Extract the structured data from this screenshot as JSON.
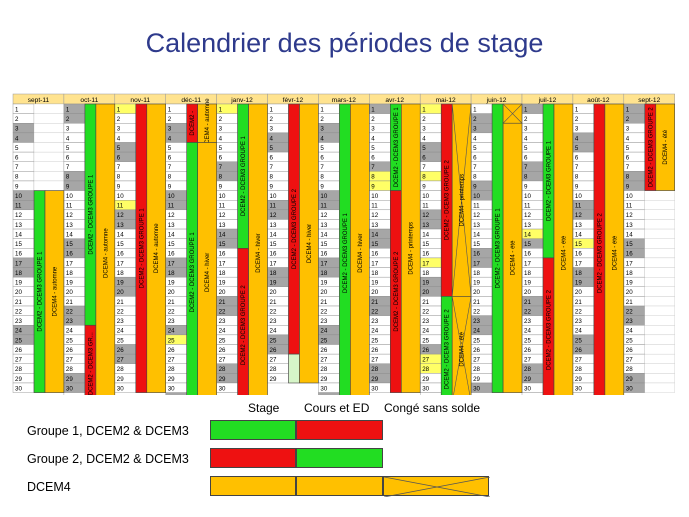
{
  "title": "Calendrier des périodes de stage",
  "colors": {
    "green": "#22dd22",
    "red": "#ee1111",
    "orange": "#ffc000",
    "gray": "#a6a6a6",
    "yellow": "#ffff66",
    "lightgreen": "#d6f5c8"
  },
  "months": [
    {
      "label": "sept-11",
      "days": 30,
      "weekend": [
        3,
        4,
        10,
        11,
        17,
        18,
        24,
        25
      ],
      "yellow": []
    },
    {
      "label": "oct-11",
      "days": 31,
      "weekend": [
        1,
        2,
        8,
        9,
        15,
        16,
        22,
        23,
        29,
        30
      ],
      "yellow": []
    },
    {
      "label": "nov-11",
      "days": 30,
      "weekend": [
        5,
        6,
        11,
        12,
        13,
        19,
        20,
        26,
        27
      ],
      "yellow": [
        1,
        11
      ]
    },
    {
      "label": "déc-11",
      "days": 31,
      "weekend": [
        3,
        4,
        10,
        11,
        17,
        18,
        24,
        25,
        31
      ],
      "yellow": [
        25
      ]
    },
    {
      "label": "janv-12",
      "days": 31,
      "weekend": [
        1,
        7,
        8,
        14,
        15,
        21,
        22,
        28,
        29
      ],
      "yellow": [
        1
      ]
    },
    {
      "label": "févr-12",
      "days": 29,
      "weekend": [
        4,
        5,
        11,
        12,
        18,
        19,
        25,
        26
      ],
      "yellow": []
    },
    {
      "label": "mars-12",
      "days": 31,
      "weekend": [
        3,
        4,
        10,
        11,
        17,
        18,
        24,
        25,
        31
      ],
      "yellow": []
    },
    {
      "label": "avr-12",
      "days": 30,
      "weekend": [
        1,
        7,
        8,
        14,
        15,
        21,
        22,
        28,
        29
      ],
      "yellow": [
        8,
        9
      ]
    },
    {
      "label": "mai-12",
      "days": 31,
      "weekend": [
        5,
        6,
        12,
        13,
        19,
        20,
        26,
        27
      ],
      "yellow": [
        1,
        8,
        17,
        27,
        28
      ]
    },
    {
      "label": "juin-12",
      "days": 30,
      "weekend": [
        2,
        3,
        9,
        10,
        16,
        17,
        23,
        24,
        30
      ],
      "yellow": []
    },
    {
      "label": "juil-12",
      "days": 31,
      "weekend": [
        1,
        7,
        8,
        14,
        15,
        21,
        22,
        28,
        29
      ],
      "yellow": [
        14
      ]
    },
    {
      "label": "août-12",
      "days": 31,
      "weekend": [
        4,
        5,
        11,
        12,
        18,
        19,
        25,
        26
      ],
      "yellow": [
        15
      ]
    },
    {
      "label": "sept-12",
      "days": 30,
      "weekend": [
        1,
        2,
        8,
        9,
        15,
        16,
        22,
        23,
        29,
        30
      ],
      "yellow": []
    }
  ],
  "blocks": [
    {
      "m": 0,
      "c": 0,
      "start": 10,
      "end": 30,
      "color": "green",
      "label": "DCEM2 - DCEM3 GROUPE 1"
    },
    {
      "m": 0,
      "c": 1,
      "start": 10,
      "end": 30,
      "color": "orange",
      "label": "DCEM4 - automne"
    },
    {
      "m": 1,
      "c": 0,
      "start": 1,
      "end": 23,
      "color": "green",
      "label": "DCEM2 - DCEM3 GROUPE 1"
    },
    {
      "m": 1,
      "c": 0,
      "start": 24,
      "end": 31,
      "color": "red",
      "label": "DCEM2 - DCEM3 GR..."
    },
    {
      "m": 1,
      "c": 1,
      "start": 1,
      "end": 31,
      "color": "orange",
      "label": "DCEM4 - automne"
    },
    {
      "m": 2,
      "c": 0,
      "start": 1,
      "end": 30,
      "color": "red",
      "label": "DCEM2 - DCEM3 GROUPE 1"
    },
    {
      "m": 2,
      "c": 1,
      "start": 1,
      "end": 30,
      "color": "orange",
      "label": "DCEM4 - automne"
    },
    {
      "m": 3,
      "c": 0,
      "start": 1,
      "end": 4,
      "color": "red",
      "label": "DCEM2 -"
    },
    {
      "m": 3,
      "c": 0,
      "start": 5,
      "end": 31,
      "color": "green",
      "label": "DCEM2 - DCEM3 GROUPE 1"
    },
    {
      "m": 3,
      "c": 1,
      "start": 1,
      "end": 4,
      "color": "orange",
      "label": "DCEM4 - automne"
    },
    {
      "m": 3,
      "c": 1,
      "start": 5,
      "end": 31,
      "color": "orange",
      "label": "DCEM4 - hiver"
    },
    {
      "m": 4,
      "c": 0,
      "start": 1,
      "end": 15,
      "color": "green",
      "label": "DCEM2 - DCEM3 GROUPE 1"
    },
    {
      "m": 4,
      "c": 0,
      "start": 16,
      "end": 31,
      "color": "red",
      "label": "DCEM2 - DCEM3 GROUPE 2"
    },
    {
      "m": 4,
      "c": 1,
      "start": 1,
      "end": 31,
      "color": "orange",
      "label": "DCEM4 - hiver"
    },
    {
      "m": 5,
      "c": 0,
      "start": 1,
      "end": 26,
      "color": "red",
      "label": "DCEM2 - DCEM3 GROUPE 2"
    },
    {
      "m": 5,
      "c": 0,
      "start": 27,
      "end": 29,
      "color": "lightgreen",
      "label": ""
    },
    {
      "m": 5,
      "c": 1,
      "start": 1,
      "end": 29,
      "color": "orange",
      "label": "DCEM4 - hiver"
    },
    {
      "m": 6,
      "c": 0,
      "start": 1,
      "end": 31,
      "color": "green",
      "label": "DCEM2 - DCEM3 GROUPE 1"
    },
    {
      "m": 6,
      "c": 1,
      "start": 1,
      "end": 31,
      "color": "orange",
      "label": "DCEM4 - hiver"
    },
    {
      "m": 7,
      "c": 0,
      "start": 1,
      "end": 9,
      "color": "green",
      "label": "DCEM2 - DCEM3 GROUPE 1"
    },
    {
      "m": 7,
      "c": 0,
      "start": 10,
      "end": 30,
      "color": "red",
      "label": "DCEM2 - DCEM3 GROUPE 2"
    },
    {
      "m": 7,
      "c": 1,
      "start": 1,
      "end": 30,
      "color": "orange",
      "label": "DCEM4 - printemps"
    },
    {
      "m": 8,
      "c": 0,
      "start": 1,
      "end": 20,
      "color": "red",
      "label": "DCEM2 - DCEM3 GROUPE 2"
    },
    {
      "m": 8,
      "c": 0,
      "start": 21,
      "end": 31,
      "color": "green",
      "label": "DCEM2 - DCEM3 GROUPE 2"
    },
    {
      "m": 8,
      "c": 1,
      "start": 1,
      "end": 20,
      "color": "orange",
      "label": "DCEM4 - printemps",
      "cross": true
    },
    {
      "m": 8,
      "c": 1,
      "start": 21,
      "end": 31,
      "color": "orange",
      "label": "DCEM4 - été",
      "cross": true
    },
    {
      "m": 9,
      "c": 0,
      "start": 1,
      "end": 30,
      "color": "green",
      "label": "DCEM2 - DCEM3 GROUPE 1"
    },
    {
      "m": 9,
      "c": 1,
      "start": 1,
      "end": 2,
      "color": "orange",
      "label": "",
      "cross": true
    },
    {
      "m": 9,
      "c": 1,
      "start": 3,
      "end": 30,
      "color": "orange",
      "label": "DCEM4 - été"
    },
    {
      "m": 10,
      "c": 0,
      "start": 1,
      "end": 16,
      "color": "green",
      "label": "DCEM2 - DCEM3 GROUPE 1"
    },
    {
      "m": 10,
      "c": 0,
      "start": 17,
      "end": 31,
      "color": "red",
      "label": "DCEM2 - DCEM3 GROUPE 2"
    },
    {
      "m": 10,
      "c": 1,
      "start": 1,
      "end": 31,
      "color": "orange",
      "label": "DCEM4 - été"
    },
    {
      "m": 11,
      "c": 0,
      "start": 1,
      "end": 31,
      "color": "red",
      "label": "DCEM2 - DCEM3 GROUPE 2"
    },
    {
      "m": 11,
      "c": 1,
      "start": 1,
      "end": 31,
      "color": "orange",
      "label": "DCEM4 - été"
    },
    {
      "m": 12,
      "c": 0,
      "start": 1,
      "end": 9,
      "color": "red",
      "label": "DCEM2 - DCEM3 GROUPE 2"
    },
    {
      "m": 12,
      "c": 1,
      "start": 1,
      "end": 9,
      "color": "orange",
      "label": "DCEM4 - été"
    }
  ],
  "legend": {
    "headers": [
      "Stage",
      "Cours et ED",
      "Congé sans solde"
    ],
    "rows": [
      {
        "label": "Groupe 1, DCEM2 & DCEM3",
        "cells": [
          "green",
          "red"
        ]
      },
      {
        "label": "Groupe 2, DCEM2 & DCEM3",
        "cells": [
          "red",
          "green"
        ]
      },
      {
        "label": "DCEM4",
        "cells": [
          "orange",
          "orange",
          "cross"
        ]
      }
    ]
  }
}
